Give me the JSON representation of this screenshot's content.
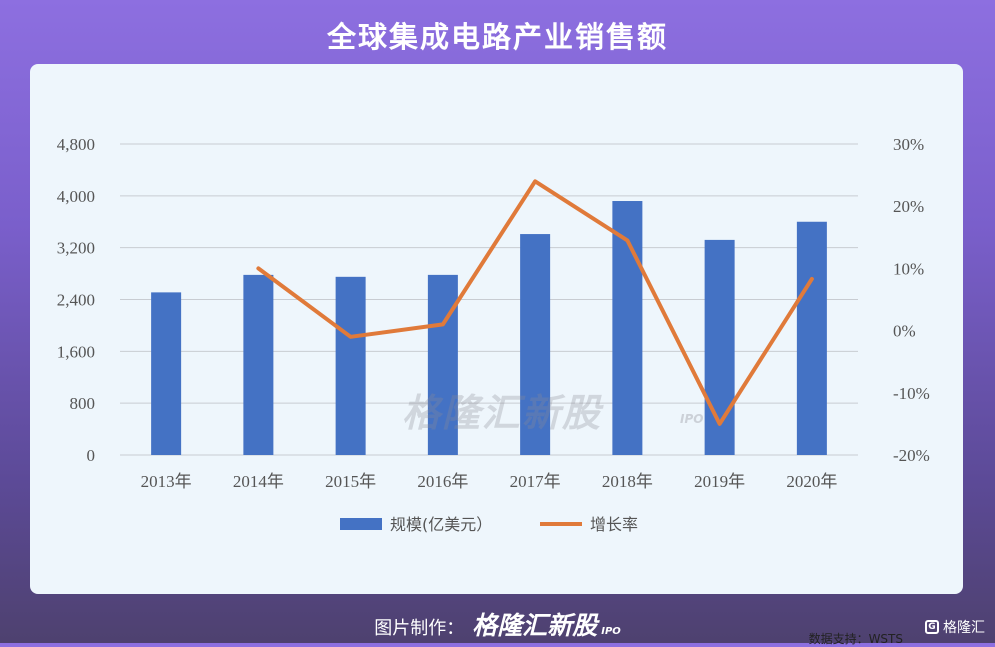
{
  "title": "全球集成电路产业销售额",
  "source": "数据支持：WSTS",
  "watermark": {
    "main": "格隆汇新股",
    "sub": "IPO"
  },
  "footer": {
    "prefix": "图片制作：",
    "brand": "格隆汇新股",
    "ipo": "IPO"
  },
  "corner_logo": {
    "icon": "G",
    "text": "格隆汇"
  },
  "colors": {
    "bar": "#4472c4",
    "line": "#e07a3a",
    "grid": "#c8ccd2"
  },
  "chart_data": {
    "type": "bar",
    "categories": [
      "2013年",
      "2014年",
      "2015年",
      "2016年",
      "2017年",
      "2018年",
      "2019年",
      "2020年"
    ],
    "series": [
      {
        "name": "规模(亿美元）",
        "type": "bar",
        "axis": "left",
        "values": [
          2510,
          2780,
          2750,
          2780,
          3410,
          3920,
          3320,
          3600
        ]
      },
      {
        "name": "增长率",
        "type": "line",
        "axis": "right",
        "values": [
          null,
          10.0,
          -1.0,
          1.0,
          24.0,
          14.5,
          -15.0,
          8.3
        ]
      }
    ],
    "y_left": {
      "ticks": [
        "4,800",
        "4,000",
        "3,200",
        "2,400",
        "1,600",
        "800",
        "0"
      ],
      "ylim": [
        0,
        4800
      ]
    },
    "y_right": {
      "ticks": [
        "30%",
        "20%",
        "10%",
        "0%",
        "-10%",
        "-20%"
      ],
      "ylim": [
        -20,
        30
      ]
    },
    "legend": "bottom"
  }
}
